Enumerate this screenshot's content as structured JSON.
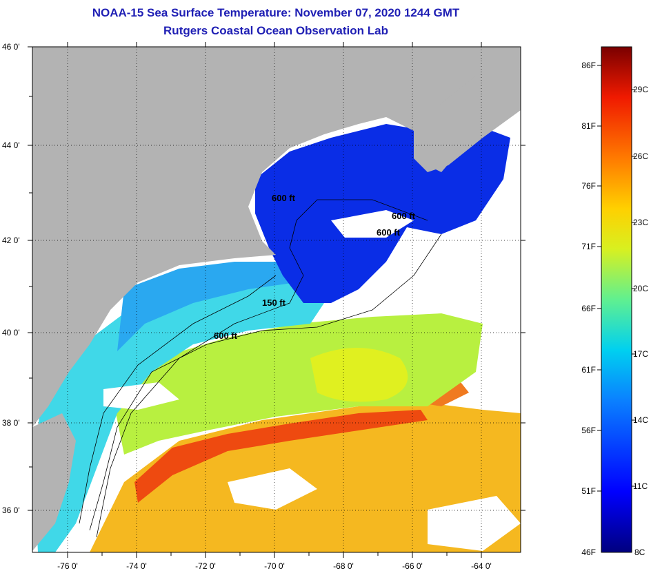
{
  "title": {
    "line1": "NOAA-15 Sea Surface Temperature:  November 07, 2020 1244 GMT",
    "line2": "Rutgers Coastal Ocean Observation Lab"
  },
  "axes": {
    "lat_labels": [
      "46 0'",
      "44 0'",
      "42 0'",
      "40 0'",
      "38 0'",
      "36 0'"
    ],
    "lon_labels": [
      "-76 0'",
      "-74 0'",
      "-72 0'",
      "-70 0'",
      "-68 0'",
      "-66 0'",
      "-64 0'"
    ]
  },
  "contours": [
    "600 ft",
    "600 ft",
    "600 ft",
    "150 ft",
    "600 ft"
  ],
  "colorbar": {
    "fahrenheit": [
      "86F",
      "81F",
      "76F",
      "71F",
      "66F",
      "61F",
      "56F",
      "51F",
      "46F"
    ],
    "celsius": [
      "29C",
      "26C",
      "23C",
      "20C",
      "17C",
      "14C",
      "11C",
      "8C"
    ]
  },
  "colors": {
    "title": "#1f1fb4",
    "land": "#b3b3b3",
    "cloud": "#ffffff",
    "cold": "#0a2de6",
    "cool": "#1aa0f0",
    "mild": "#40e8b8",
    "warm_green": "#b8f040",
    "warm": "#f5b820",
    "hot": "#ee3a0c"
  }
}
